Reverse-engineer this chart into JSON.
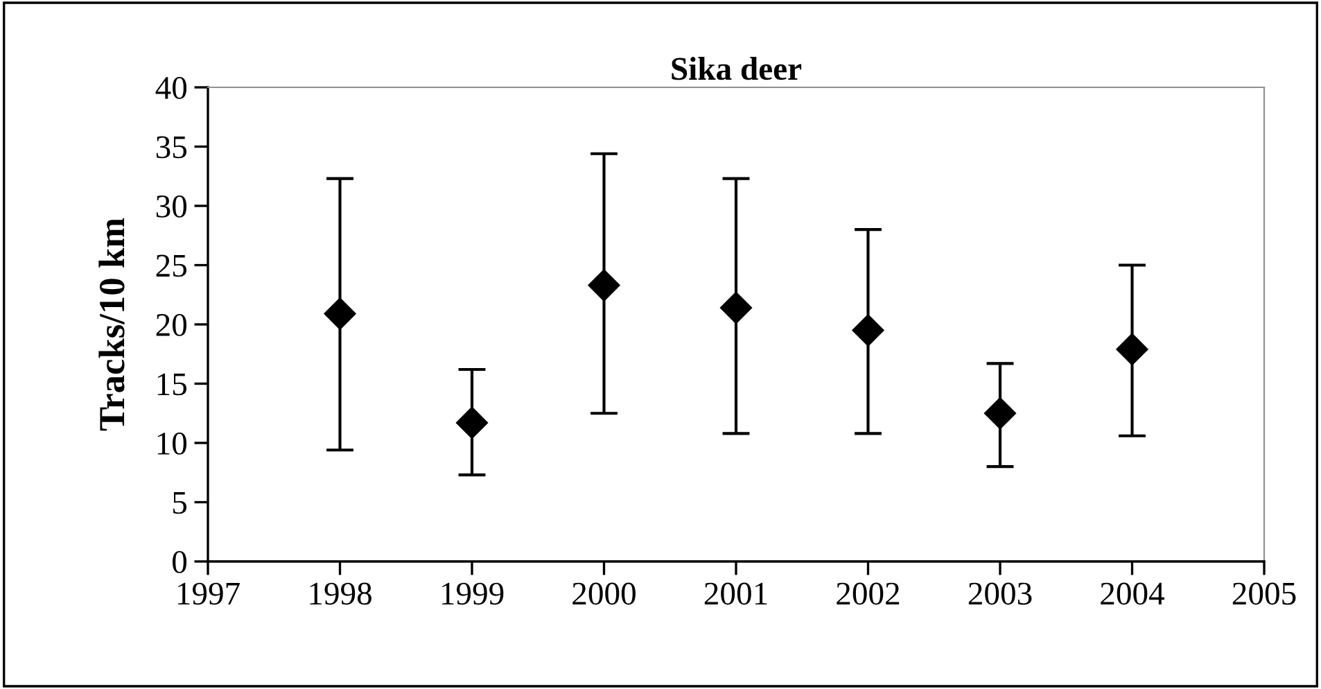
{
  "chart_data": {
    "type": "scatter",
    "title": "Sika deer",
    "ylabel": "Tracks/10 km",
    "x": [
      1998,
      1999,
      2000,
      2001,
      2002,
      2003,
      2004
    ],
    "series": [
      {
        "color": "#000000",
        "values": [
          20.9,
          11.7,
          23.3,
          21.4,
          19.5,
          12.5,
          17.9
        ],
        "errors": [
          [
            9.4,
            32.3
          ],
          [
            7.3,
            16.2
          ],
          [
            12.5,
            34.4
          ],
          [
            10.8,
            32.3
          ],
          [
            10.8,
            28.0
          ],
          [
            8.0,
            16.7
          ],
          [
            10.6,
            25.0
          ]
        ]
      }
    ],
    "marker": "diamond",
    "xlim": [
      1997,
      2005
    ],
    "xticks": [
      1997,
      1998,
      1999,
      2000,
      2001,
      2002,
      2003,
      2004,
      2005
    ],
    "ylim": [
      0,
      40
    ],
    "yticks": [
      0,
      5,
      10,
      15,
      20,
      25,
      30,
      35,
      40
    ],
    "grid": false,
    "legend": false
  }
}
